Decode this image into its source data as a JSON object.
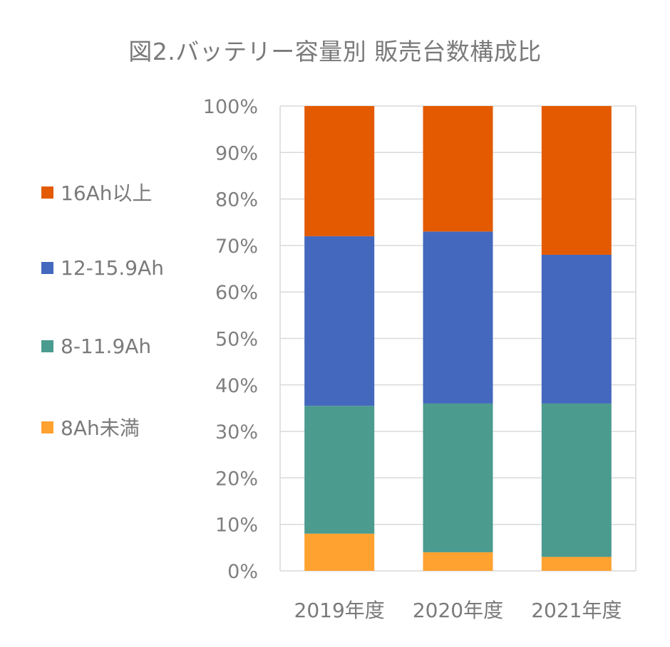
{
  "chart_data": {
    "type": "bar",
    "stacked": true,
    "title": "図2.バッテリー容量別 販売台数構成比",
    "categories": [
      "2019年度",
      "2020年度",
      "2021年度"
    ],
    "series": [
      {
        "name": "8Ah未満",
        "color": "#ffa230",
        "values": [
          8,
          4,
          3
        ]
      },
      {
        "name": "8-11.9Ah",
        "color": "#4b9b8f",
        "values": [
          27.5,
          32,
          33
        ]
      },
      {
        "name": "12-15.9Ah",
        "color": "#4468be",
        "values": [
          36.5,
          37,
          32
        ]
      },
      {
        "name": "16Ah以上",
        "color": "#e35a00",
        "values": [
          28,
          27,
          32
        ]
      }
    ],
    "y_ticks": [
      "0%",
      "10%",
      "20%",
      "30%",
      "40%",
      "50%",
      "60%",
      "70%",
      "80%",
      "90%",
      "100%"
    ],
    "ylim": [
      0,
      100
    ],
    "grid": true,
    "legend_position": "left",
    "legend_order": [
      "16Ah以上",
      "12-15.9Ah",
      "8-11.9Ah",
      "8Ah未満"
    ]
  }
}
